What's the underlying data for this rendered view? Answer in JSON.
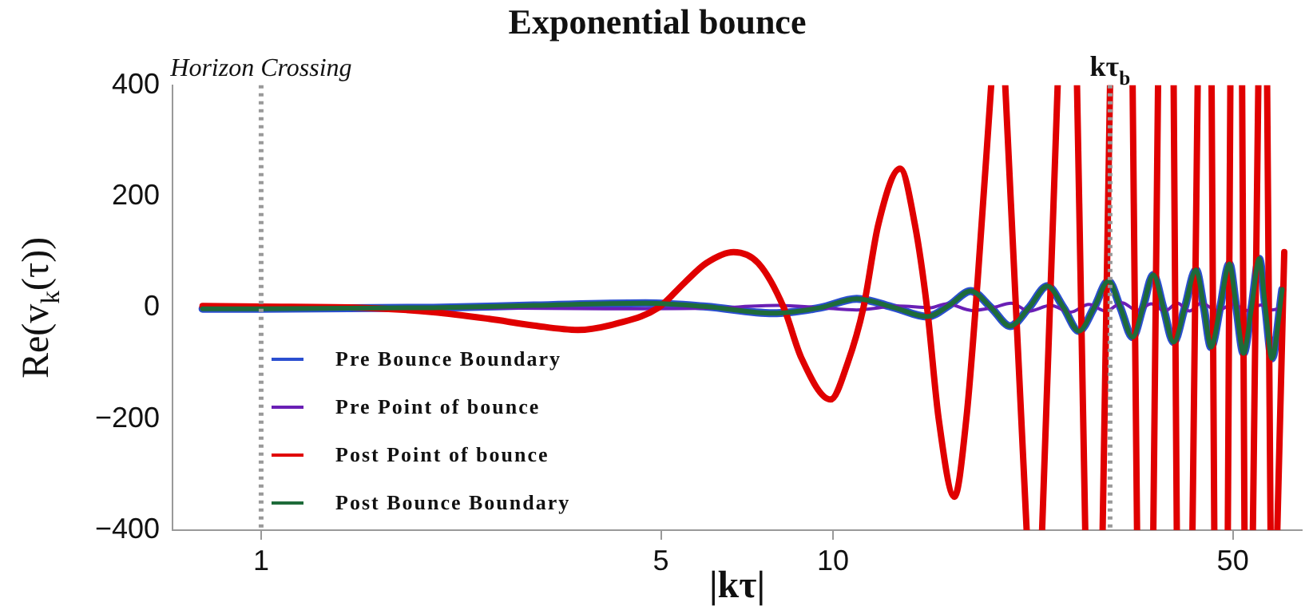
{
  "chart_data": {
    "type": "line",
    "title": "Exponential bounce",
    "xlabel": "|kτ|",
    "ylabel": "Re(v$_{k}$(τ))",
    "log": "x",
    "xlim": [
      0.7,
      66
    ],
    "xticks": [
      1,
      5,
      10,
      50
    ],
    "ylim": [
      -400,
      400
    ],
    "yticks": [
      400,
      200,
      0,
      {
        "value": -200,
        "label": "−200"
      },
      {
        "value": -400,
        "label": "−400"
      }
    ],
    "legend": "bottom left",
    "line_style": "solid",
    "marker": "none",
    "ref_lines": [
      {
        "axis": "x",
        "value": 1,
        "label": "Horizon Crossing",
        "color": "#999999",
        "line_style": "dotted"
      },
      {
        "axis": "x",
        "value": 30.5,
        "label": "kτ$_{b}$",
        "color": "#999999",
        "line_style": "dotted"
      }
    ],
    "series": [
      {
        "name": "Pre Bounce Boundary",
        "color": "#2b4fd0",
        "x": [
          0.79,
          1,
          2,
          3,
          4.7,
          6,
          7.85,
          9.5,
          11,
          12.8,
          14.6,
          16,
          17.4,
          18.9,
          20.4,
          22,
          23.7,
          25.3,
          26.9,
          28.6,
          30.3,
          31.8,
          33.4,
          34.8,
          36.3,
          37.8,
          39.4,
          41.2,
          43.1,
          44.5,
          45.8,
          47.5,
          49.3,
          50.7,
          52.2,
          53.9,
          55.6,
          57,
          58.5,
          61
        ],
        "values": [
          -2,
          -2,
          0,
          4,
          8,
          2,
          -10,
          0,
          16,
          0,
          -16,
          5,
          30,
          0,
          -33,
          0,
          39,
          0,
          -42,
          0,
          48,
          0,
          -53,
          0,
          59,
          0,
          -62,
          0,
          68,
          0,
          -71,
          0,
          79,
          0,
          -82,
          0,
          88,
          0,
          -91,
          33
        ]
      },
      {
        "name": "Pre Point of bounce",
        "color": "#6a1fb5",
        "x": [
          0.79,
          2,
          4,
          6,
          8,
          9.5,
          11,
          13,
          14.8,
          15.8,
          17.5,
          19,
          20.5,
          22,
          24,
          26,
          28,
          30,
          32,
          34,
          36,
          38,
          40,
          42,
          44,
          47,
          50,
          53,
          56,
          58.5,
          61
        ],
        "values": [
          0,
          0,
          -2,
          -1,
          4,
          0,
          -4,
          3,
          0,
          7,
          -5,
          0,
          8,
          -6,
          4,
          -8,
          6,
          -6,
          9,
          -5,
          7,
          -6,
          8,
          -6,
          8,
          -5,
          6,
          -5,
          5,
          -4,
          0
        ]
      },
      {
        "name": "Post Point of bounce",
        "color": "#e00000",
        "x": [
          0.79,
          1,
          1.5,
          2,
          2.5,
          3,
          3.58,
          4.2,
          4.95,
          5.5,
          6,
          6.7,
          7.4,
          8.2,
          8.8,
          9.9,
          10.6,
          11.3,
          12,
          13.1,
          13.9,
          14.6,
          15.3,
          16.3,
          17.1,
          17.9,
          18.9,
          19.5,
          20,
          21.8,
          22.5,
          23.2,
          24.7,
          25.7,
          26.7,
          27.6,
          28.6,
          29.6,
          30.5,
          32,
          33.4,
          34,
          35.1,
          36.3,
          37,
          38.2,
          39.4,
          39.9,
          41.2,
          42.5,
          43.4,
          44.7,
          45.9,
          46.4,
          47.7,
          49,
          49.5,
          50.7,
          51.9,
          52.4,
          53.3,
          54.2,
          55.4,
          56.4,
          57.4,
          58.2,
          59,
          59.8,
          61.5
        ],
        "values": [
          3,
          2,
          0,
          -8,
          -20,
          -32,
          -40,
          -28,
          0,
          45,
          80,
          100,
          80,
          0,
          -90,
          -165,
          -100,
          0,
          150,
          250,
          150,
          0,
          -200,
          -340,
          -200,
          50,
          400,
          null,
          400,
          -400,
          null,
          -400,
          400,
          null,
          400,
          -400,
          null,
          -400,
          400,
          null,
          400,
          -400,
          null,
          -400,
          400,
          null,
          400,
          -400,
          null,
          -400,
          400,
          null,
          400,
          -400,
          null,
          -400,
          400,
          null,
          400,
          -400,
          null,
          -400,
          400,
          null,
          400,
          -400,
          null,
          -400,
          100
        ]
      },
      {
        "name": "Post Bounce Boundary",
        "color": "#1e6b3a",
        "x": [
          0.79,
          1,
          2,
          3,
          4.7,
          6,
          7.85,
          9.5,
          11,
          12.8,
          14.6,
          16,
          17.4,
          18.9,
          20.4,
          22,
          23.7,
          25.3,
          26.9,
          28.6,
          30.3,
          31.8,
          33.4,
          34.8,
          36.3,
          37.8,
          39.4,
          41.2,
          43.1,
          44.5,
          45.8,
          47.5,
          49.3,
          50.7,
          52.2,
          53.9,
          55.6,
          57,
          58.5,
          61
        ],
        "values": [
          -2,
          -2,
          0,
          4,
          8,
          2,
          -10,
          0,
          16,
          0,
          -16,
          5,
          30,
          0,
          -33,
          0,
          39,
          0,
          -42,
          0,
          48,
          0,
          -53,
          0,
          59,
          0,
          -62,
          0,
          68,
          0,
          -71,
          0,
          79,
          0,
          -82,
          0,
          88,
          0,
          -91,
          33
        ]
      }
    ]
  }
}
